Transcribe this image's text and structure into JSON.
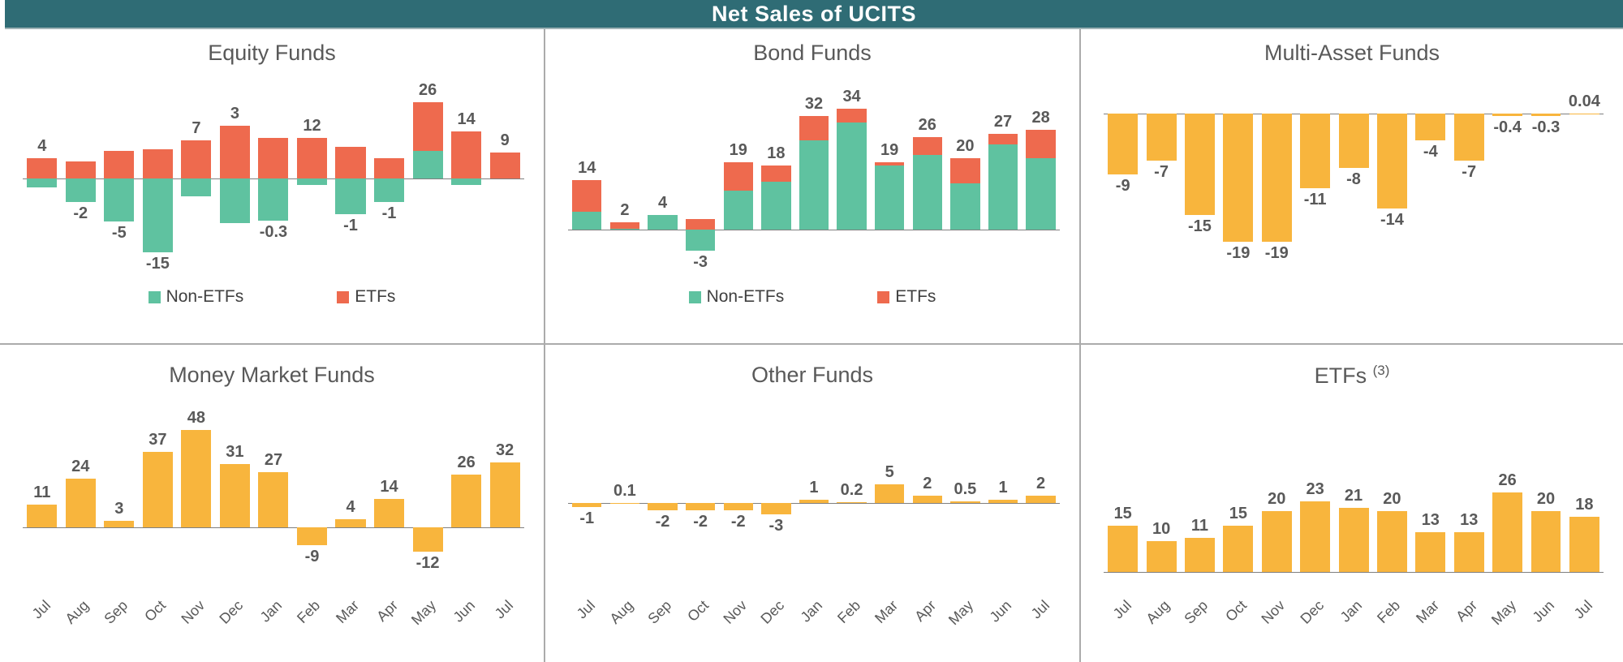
{
  "header": {
    "title": "Net Sales of UCITS"
  },
  "months": [
    "Jul",
    "Aug",
    "Sep",
    "Oct",
    "Nov",
    "Dec",
    "Jan",
    "Feb",
    "Mar",
    "Apr",
    "May",
    "Jun",
    "Jul"
  ],
  "legend": {
    "non_etfs": "Non-ETFs",
    "etfs": "ETFs"
  },
  "colors": {
    "non_etfs": "#5FC2A0",
    "etfs": "#EE6A4E",
    "single_series": "#F8B53D",
    "header_bg": "#2F6C75",
    "header_text": "#FFFFFF",
    "label_text": "#595959",
    "axis_line": "#7F7F7F",
    "divider": "#ABABAB"
  },
  "chart_data": [
    {
      "id": "equity-funds",
      "type": "bar",
      "stacked": true,
      "title": "Equity Funds",
      "categories": [
        "Jul",
        "Aug",
        "Sep",
        "Oct",
        "Nov",
        "Dec",
        "Jan",
        "Feb",
        "Mar",
        "Apr",
        "May",
        "Jun",
        "Jul"
      ],
      "series": [
        {
          "name": "Non-ETFs",
          "color": "#5FC2A0",
          "values": [
            -3,
            -8,
            -14.5,
            -25,
            -6,
            -15,
            -14.3,
            -2,
            -12,
            -8,
            9.5,
            -2,
            0
          ]
        },
        {
          "name": "ETFs",
          "color": "#EE6A4E",
          "values": [
            7,
            6,
            9.5,
            10,
            13,
            18,
            14,
            14,
            11,
            7,
            16.5,
            16,
            9
          ]
        }
      ],
      "net_values": [
        4,
        -2,
        -5,
        -15,
        7,
        3,
        -0.3,
        12,
        -1,
        -1,
        26,
        14,
        9
      ],
      "labels": [
        "4",
        "-2",
        "-5",
        "-15",
        "7",
        "3",
        "-0.3",
        "12",
        "-1",
        "-1",
        "26",
        "14",
        "9"
      ],
      "ylim": [
        -33,
        36
      ],
      "show_legend": true,
      "show_x_labels": false
    },
    {
      "id": "bond-funds",
      "type": "bar",
      "stacked": true,
      "title": "Bond Funds",
      "categories": [
        "Jul",
        "Aug",
        "Sep",
        "Oct",
        "Nov",
        "Dec",
        "Jan",
        "Feb",
        "Mar",
        "Apr",
        "May",
        "Jun",
        "Jul"
      ],
      "series": [
        {
          "name": "Non-ETFs",
          "color": "#5FC2A0",
          "values": [
            5,
            0.3,
            4,
            -6,
            11,
            13.5,
            25,
            30,
            18,
            21,
            13,
            24,
            20
          ]
        },
        {
          "name": "ETFs",
          "color": "#EE6A4E",
          "values": [
            9,
            1.7,
            0,
            3,
            8,
            4.5,
            7,
            4,
            1,
            5,
            7,
            3,
            8
          ]
        }
      ],
      "net_values": [
        14,
        2,
        4,
        -3,
        19,
        18,
        32,
        34,
        19,
        26,
        20,
        27,
        28
      ],
      "labels": [
        "14",
        "2",
        "4",
        "-3",
        "19",
        "18",
        "32",
        "34",
        "19",
        "26",
        "20",
        "27",
        "28"
      ],
      "ylim": [
        -13,
        44
      ],
      "show_legend": true,
      "show_x_labels": false
    },
    {
      "id": "multi-asset-funds",
      "type": "bar",
      "stacked": false,
      "title": "Multi-Asset Funds",
      "categories": [
        "Jul",
        "Aug",
        "Sep",
        "Oct",
        "Nov",
        "Dec",
        "Jan",
        "Feb",
        "Mar",
        "Apr",
        "May",
        "Jun",
        "Jul"
      ],
      "series": [
        {
          "name": "Multi-Asset Funds",
          "color": "#F8B53D",
          "values": [
            -9,
            -7,
            -15,
            -19,
            -19,
            -11,
            -8,
            -14,
            -4,
            -7,
            -0.4,
            -0.3,
            0.04
          ]
        }
      ],
      "net_values": [
        -9,
        -7,
        -15,
        -19,
        -19,
        -11,
        -8,
        -14,
        -4,
        -7,
        -0.4,
        -0.3,
        0.04
      ],
      "labels": [
        "-9",
        "-7",
        "-15",
        "-19",
        "-19",
        "-11",
        "-8",
        "-14",
        "-4",
        "-7",
        "-0.4",
        "-0.3",
        "0.04"
      ],
      "ylim": [
        -24,
        6
      ],
      "show_legend": false,
      "show_x_labels": false
    },
    {
      "id": "money-market-funds",
      "type": "bar",
      "stacked": false,
      "title": "Money Market Funds",
      "categories": [
        "Jul",
        "Aug",
        "Sep",
        "Oct",
        "Nov",
        "Dec",
        "Jan",
        "Feb",
        "Mar",
        "Apr",
        "May",
        "Jun",
        "Jul"
      ],
      "series": [
        {
          "name": "Money Market Funds",
          "color": "#F8B53D",
          "values": [
            11,
            24,
            3,
            37,
            48,
            31,
            27,
            -9,
            4,
            14,
            -12,
            26,
            32
          ]
        }
      ],
      "net_values": [
        11,
        24,
        3,
        37,
        48,
        31,
        27,
        -9,
        4,
        14,
        -12,
        26,
        32
      ],
      "labels": [
        "11",
        "24",
        "3",
        "37",
        "48",
        "31",
        "27",
        "-9",
        "4",
        "14",
        "-12",
        "26",
        "32"
      ],
      "ylim": [
        -25,
        65
      ],
      "show_legend": false,
      "show_x_labels": true
    },
    {
      "id": "other-funds",
      "type": "bar",
      "stacked": false,
      "title": "Other Funds",
      "categories": [
        "Jul",
        "Aug",
        "Sep",
        "Oct",
        "Nov",
        "Dec",
        "Jan",
        "Feb",
        "Mar",
        "Apr",
        "May",
        "Jun",
        "Jul"
      ],
      "series": [
        {
          "name": "Other Funds",
          "color": "#F8B53D",
          "values": [
            -1,
            0.1,
            -2,
            -2,
            -2,
            -3,
            1,
            0.2,
            5,
            2,
            0.5,
            1,
            2
          ]
        }
      ],
      "net_values": [
        -1,
        0.1,
        -2,
        -2,
        -2,
        -3,
        1,
        0.2,
        5,
        2,
        0.5,
        1,
        2
      ],
      "labels": [
        "-1",
        "0.1",
        "-2",
        "-2",
        "-2",
        "-3",
        "1",
        "0.2",
        "5",
        "2",
        "0.5",
        "1",
        "2"
      ],
      "ylim": [
        -20,
        29
      ],
      "show_legend": false,
      "show_x_labels": true
    },
    {
      "id": "etfs",
      "type": "bar",
      "stacked": false,
      "title": "ETFs",
      "title_sup": "(3)",
      "categories": [
        "Jul",
        "Aug",
        "Sep",
        "Oct",
        "Nov",
        "Dec",
        "Jan",
        "Feb",
        "Mar",
        "Apr",
        "May",
        "Jun",
        "Jul"
      ],
      "series": [
        {
          "name": "ETFs",
          "color": "#F8B53D",
          "values": [
            15,
            10,
            11,
            15,
            20,
            23,
            21,
            20,
            13,
            13,
            26,
            20,
            18
          ]
        }
      ],
      "net_values": [
        15,
        10,
        11,
        15,
        20,
        23,
        21,
        20,
        13,
        13,
        26,
        20,
        18
      ],
      "labels": [
        "15",
        "10",
        "11",
        "15",
        "20",
        "23",
        "21",
        "20",
        "13",
        "13",
        "26",
        "20",
        "18"
      ],
      "ylim": [
        -2,
        58
      ],
      "show_legend": false,
      "show_x_labels": true
    }
  ]
}
